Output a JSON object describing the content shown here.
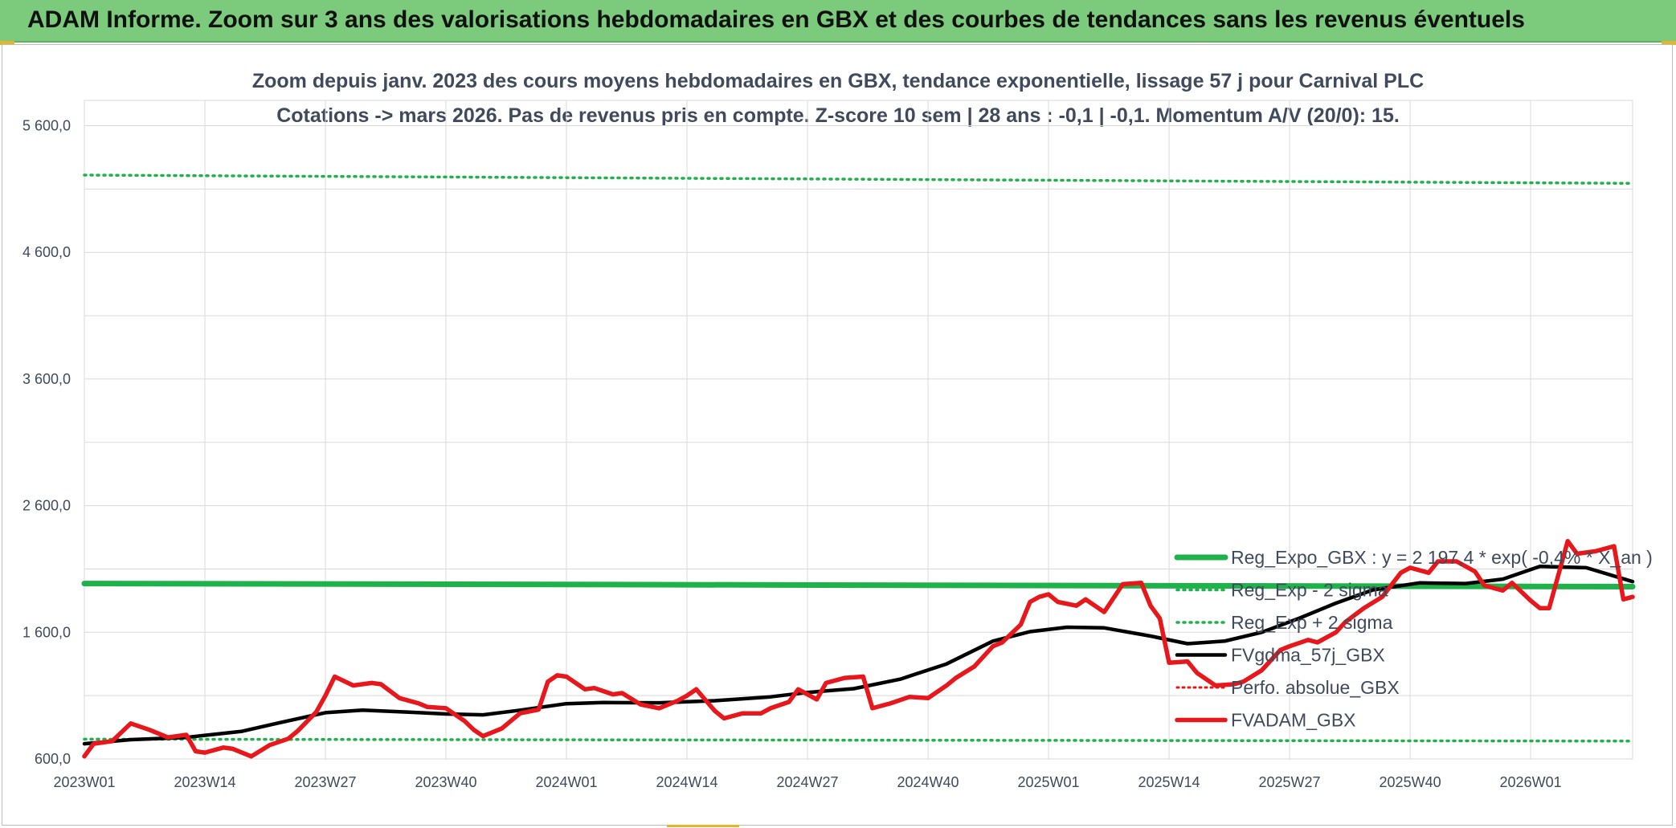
{
  "banner": {
    "title": "ADAM Informe. Zoom sur 3 ans des valorisations hebdomadaires en GBX et des courbes de tendances sans les revenus éventuels"
  },
  "colors": {
    "banner_bg": "#7ccb7c",
    "reg_expo": "#1fb24a",
    "sigma_lines": "#1fb24a",
    "fvgdma": "#000000",
    "perfo": "#e01818",
    "fvadam": "#e8171b",
    "text": "#3f4a5c"
  },
  "chart_data": {
    "type": "line",
    "title": "Zoom depuis janv. 2023 des cours moyens hebdomadaires en GBX, tendance exponentielle, lissage 57 j pour Carnival PLC",
    "subtitle": "Cotations -> mars 2026. Pas de revenus pris en compte. Z-score 10 sem | 28 ans : -0,1 | -0,1. Momentum A/V (20/0): 15.",
    "ylim": [
      600,
      5800
    ],
    "yticks": [
      "600,0",
      "1 600,0",
      "2 600,0",
      "3 600,0",
      "4 600,0",
      "5 600,0"
    ],
    "ytick_values": [
      600,
      1600,
      2600,
      3600,
      4600,
      5600
    ],
    "xlim": [
      1,
      168
    ],
    "xticks": [
      "2023W01",
      "2023W14",
      "2023W27",
      "2023W40",
      "2024W01",
      "2024W14",
      "2024W27",
      "2024W40",
      "2025W01",
      "2025W14",
      "2025W27",
      "2025W40",
      "2026W01"
    ],
    "xtick_index": [
      1,
      14,
      27,
      40,
      53,
      66,
      79,
      92,
      105,
      118,
      131,
      144,
      157
    ],
    "grid": true,
    "legend_position": "right",
    "series": [
      {
        "name": "Reg_Expo_GBX : y = 2 197,4 * exp( -0,4% * X_an )",
        "style": "solid-thick",
        "x": [
          1,
          168
        ],
        "values": [
          1985,
          1960
        ]
      },
      {
        "name": "Reg_Exp - 2 sigma",
        "style": "dotted",
        "x": [
          1,
          168
        ],
        "values": [
          756,
          741
        ]
      },
      {
        "name": "Reg_Exp + 2 sigma",
        "style": "dotted",
        "x": [
          1,
          168
        ],
        "values": [
          5210,
          5145
        ]
      },
      {
        "name": "FVgdma_57j_GBX",
        "style": "solid",
        "x": [
          1,
          6,
          12,
          18,
          22,
          27,
          31,
          36,
          40,
          44,
          48,
          53,
          57,
          63,
          69,
          75,
          79,
          84,
          89,
          94,
          99,
          103,
          107,
          111,
          116,
          120,
          124,
          128,
          132,
          136,
          140,
          145,
          150,
          154,
          158,
          163,
          168
        ],
        "values": [
          720,
          752,
          770,
          818,
          885,
          965,
          985,
          970,
          955,
          948,
          985,
          1036,
          1045,
          1043,
          1060,
          1090,
          1125,
          1155,
          1230,
          1350,
          1530,
          1605,
          1640,
          1635,
          1570,
          1510,
          1530,
          1600,
          1710,
          1830,
          1935,
          1990,
          1985,
          2020,
          2120,
          2110,
          2000
        ]
      },
      {
        "name": "Perfo. absolue_GBX",
        "style": "dotted",
        "x": [],
        "values": []
      },
      {
        "name": "FVADAM_GBX",
        "style": "solid-thick",
        "x": [
          1,
          2,
          4,
          6,
          8,
          10,
          12,
          13,
          14,
          16,
          17,
          19,
          21,
          23,
          24,
          26,
          27,
          28,
          30,
          32,
          33,
          35,
          37,
          38,
          40,
          42,
          43,
          44,
          46,
          48,
          50,
          51,
          52,
          53,
          55,
          56,
          58,
          59,
          61,
          63,
          65,
          66,
          67,
          69,
          70,
          72,
          74,
          75,
          77,
          78,
          80,
          81,
          83,
          85,
          86,
          88,
          90,
          92,
          94,
          95,
          97,
          99,
          100,
          102,
          103,
          104,
          105,
          106,
          108,
          109,
          111,
          113,
          115,
          116,
          117,
          118,
          120,
          121,
          123,
          125,
          126,
          128,
          130,
          131,
          133,
          134,
          136,
          137,
          139,
          141,
          143,
          144,
          146,
          147,
          149,
          151,
          152,
          154,
          155,
          157,
          158,
          159,
          161,
          162,
          164,
          166,
          167,
          168
        ],
        "values": [
          620,
          720,
          740,
          880,
          830,
          770,
          790,
          660,
          650,
          690,
          680,
          620,
          710,
          760,
          820,
          970,
          1100,
          1250,
          1180,
          1200,
          1190,
          1080,
          1040,
          1010,
          1000,
          900,
          830,
          780,
          840,
          960,
          990,
          1210,
          1260,
          1250,
          1150,
          1160,
          1110,
          1120,
          1030,
          1000,
          1060,
          1100,
          1150,
          980,
          920,
          960,
          960,
          1000,
          1050,
          1150,
          1070,
          1200,
          1240,
          1250,
          1000,
          1040,
          1090,
          1080,
          1180,
          1240,
          1330,
          1490,
          1520,
          1660,
          1840,
          1880,
          1900,
          1840,
          1810,
          1860,
          1760,
          1980,
          1990,
          1810,
          1710,
          1360,
          1370,
          1280,
          1180,
          1190,
          1210,
          1300,
          1460,
          1490,
          1540,
          1520,
          1600,
          1680,
          1790,
          1880,
          2070,
          2110,
          2070,
          2160,
          2160,
          2080,
          1970,
          1930,
          1990,
          1850,
          1790,
          1790,
          2320,
          2220,
          2240,
          2280,
          1860,
          1880
        ]
      }
    ]
  }
}
